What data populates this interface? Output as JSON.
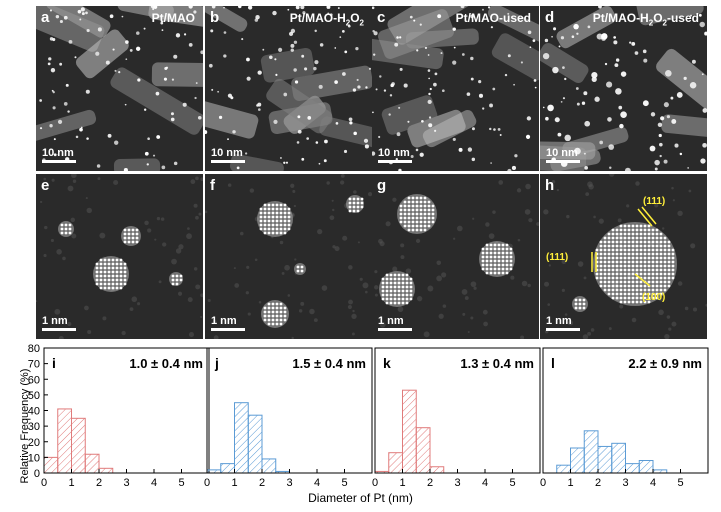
{
  "image_panels": [
    {
      "label": "a",
      "title_parts": [
        "Pt/MAO"
      ],
      "scale": "10 nm"
    },
    {
      "label": "b",
      "title_parts": [
        "Pt/MAO-H",
        "2",
        "O",
        "2",
        ""
      ],
      "scale": "10 nm"
    },
    {
      "label": "c",
      "title_parts": [
        "Pt/MAO-used"
      ],
      "scale": "10 nm"
    },
    {
      "label": "d",
      "title_parts": [
        "Pt/MAO-H",
        "2",
        "O",
        "2",
        "-used"
      ],
      "scale": "10 nm"
    },
    {
      "label": "e",
      "title_parts": [],
      "scale": "1 nm"
    },
    {
      "label": "f",
      "title_parts": [],
      "scale": "1 nm"
    },
    {
      "label": "g",
      "title_parts": [],
      "scale": "1 nm"
    },
    {
      "label": "h",
      "title_parts": [],
      "scale": "1 nm"
    }
  ],
  "facet_labels": {
    "top": "(111)",
    "left": "(111)",
    "bottom": "(100)"
  },
  "y_axis_title": "Relative Frequency (%)",
  "x_axis_title": "Diameter of Pt (nm)",
  "colors": {
    "red": "#e07b7b",
    "blue": "#5b9bd5",
    "facet": "#ffef3a"
  },
  "chart_data": [
    {
      "type": "bar",
      "label": "i",
      "annotation": "1.0 ± 0.4 nm",
      "color": "red",
      "bin_starts": [
        0,
        0.5,
        1.0,
        1.5,
        2.0
      ],
      "bin_width": 0.5,
      "values": [
        10,
        41,
        35,
        12,
        3
      ],
      "xlim": [
        0,
        6
      ],
      "ylim": [
        0,
        80
      ],
      "x_ticks": [
        "0",
        "1",
        "2",
        "3",
        "4",
        "5"
      ],
      "y_ticks": [
        "0",
        "10",
        "20",
        "30",
        "40",
        "50",
        "60",
        "70",
        "80"
      ]
    },
    {
      "type": "bar",
      "label": "j",
      "annotation": "1.5 ± 0.4 nm",
      "color": "blue",
      "bin_starts": [
        0,
        0.5,
        1.0,
        1.5,
        2.0,
        2.5
      ],
      "bin_width": 0.5,
      "values": [
        2,
        6,
        45,
        37,
        9,
        1
      ],
      "xlim": [
        0,
        6
      ],
      "ylim": [
        0,
        80
      ],
      "x_ticks": [
        "0",
        "1",
        "2",
        "3",
        "4",
        "5"
      ],
      "y_ticks": []
    },
    {
      "type": "bar",
      "label": "k",
      "annotation": "1.3 ± 0.4 nm",
      "color": "red",
      "bin_starts": [
        0,
        0.5,
        1.0,
        1.5,
        2.0
      ],
      "bin_width": 0.5,
      "values": [
        1,
        13,
        53,
        29,
        4
      ],
      "xlim": [
        0,
        6
      ],
      "ylim": [
        0,
        80
      ],
      "x_ticks": [
        "0",
        "1",
        "2",
        "3",
        "4",
        "5"
      ],
      "y_ticks": []
    },
    {
      "type": "bar",
      "label": "l",
      "annotation": "2.2 ± 0.9 nm",
      "color": "blue",
      "bin_starts": [
        0.5,
        1.0,
        1.5,
        2.0,
        2.5,
        3.0,
        3.5,
        4.0
      ],
      "bin_width": 0.5,
      "values": [
        5,
        16,
        27,
        17,
        19,
        6,
        8,
        2
      ],
      "xlim": [
        0,
        6
      ],
      "ylim": [
        0,
        80
      ],
      "x_ticks": [
        "0",
        "1",
        "2",
        "3",
        "4",
        "5"
      ],
      "y_ticks": []
    }
  ]
}
